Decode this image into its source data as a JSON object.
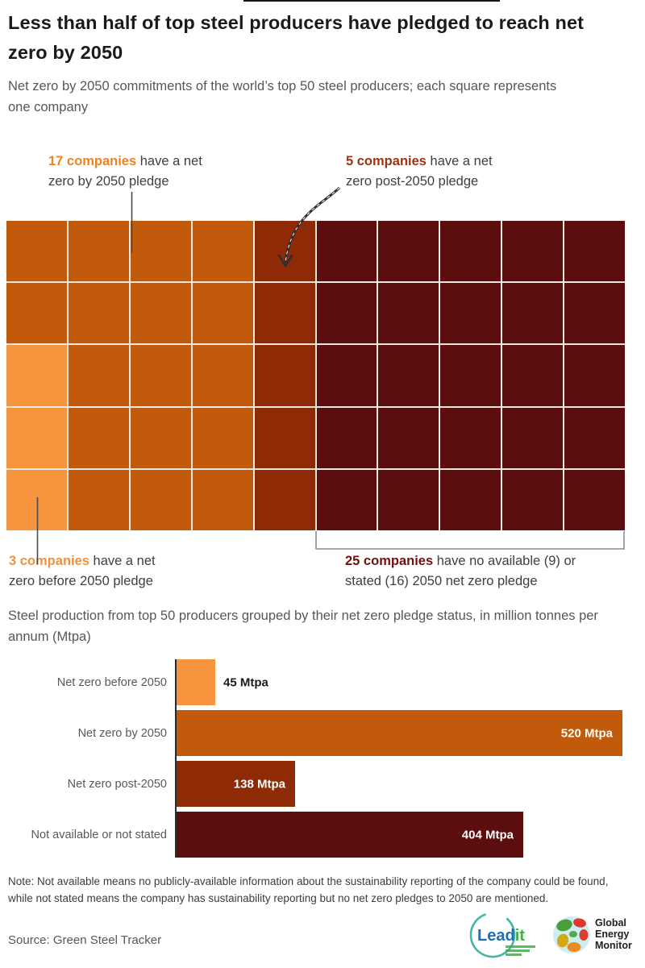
{
  "page": {
    "title": "Less than half of top steel producers have pledged to reach net zero by 2050",
    "subtitle": "Net zero by 2050 commitments of the world’s top 50 steel producers; each square represents one company"
  },
  "colors": {
    "before2050": "#F6953E",
    "by2050": "#C25A0B",
    "post2050": "#8E2B06",
    "na": "#5C0D0D"
  },
  "waffle": {
    "columns": 10,
    "rows": 5,
    "cells": [
      "by2050",
      "by2050",
      "by2050",
      "by2050",
      "post2050",
      "na",
      "na",
      "na",
      "na",
      "na",
      "by2050",
      "by2050",
      "by2050",
      "by2050",
      "post2050",
      "na",
      "na",
      "na",
      "na",
      "na",
      "before2050",
      "by2050",
      "by2050",
      "by2050",
      "post2050",
      "na",
      "na",
      "na",
      "na",
      "na",
      "before2050",
      "by2050",
      "by2050",
      "by2050",
      "post2050",
      "na",
      "na",
      "na",
      "na",
      "na",
      "before2050",
      "by2050",
      "by2050",
      "by2050",
      "post2050",
      "na",
      "na",
      "na",
      "na",
      "na"
    ],
    "annotations": {
      "by2050": {
        "bold": "17 companies",
        "rest": " have a net",
        "line2": "zero by 2050 pledge",
        "bold_color": "#ED831F"
      },
      "post2050": {
        "bold": "5 companies",
        "rest": " have a net",
        "line2": "zero post-2050 pledge",
        "bold_color": "#9E3213"
      },
      "before2050": {
        "bold": "3 companies",
        "rest": " have a net",
        "line2": "zero before 2050 pledge",
        "bold_color": "#F2913B"
      },
      "na": {
        "bold": "25 companies",
        "rest": " have no available (9) or",
        "line2": "stated (16) 2050 net zero pledge",
        "bold_color": "#701310"
      }
    }
  },
  "production": {
    "heading": "Steel production from top 50 producers grouped by their net zero pledge status, in million tonnes per annum (Mtpa)"
  },
  "chart_data": [
    {
      "type": "bar",
      "subtype": "waffle",
      "title": "Net zero by 2050 commitments of the world’s top 50 steel producers; each square represents one company",
      "categories": [
        "Net zero before 2050",
        "Net zero by 2050",
        "Net zero post-2050",
        "No available (9) or stated (16) 2050 net zero pledge"
      ],
      "values": [
        3,
        17,
        5,
        25
      ],
      "unit": "companies",
      "total": 50,
      "colors": [
        "#F6953E",
        "#C25A0B",
        "#8E2B06",
        "#5C0D0D"
      ]
    },
    {
      "type": "bar",
      "orientation": "horizontal",
      "title": "Steel production from top 50 producers grouped by their net zero pledge status, in million tonnes per annum (Mtpa)",
      "categories": [
        "Net zero before 2050",
        "Net zero by 2050",
        "Net zero post-2050",
        "Not available or not stated"
      ],
      "values": [
        45,
        520,
        138,
        404
      ],
      "value_labels": [
        "45 Mtpa",
        "520 Mtpa",
        "138 Mtpa",
        "404 Mtpa"
      ],
      "unit": "Mtpa",
      "xlim": [
        0,
        520
      ],
      "bar_colors": [
        "#F6953E",
        "#C25A0B",
        "#8E2B06",
        "#5C0D0D"
      ],
      "grid": false,
      "legend": false
    }
  ],
  "note": "Note: Not available means no publicly-available information about the sustainability reporting of the company could be found, while not stated means the company has sustainability reporting but no net zero pledges to 2050 are mentioned.",
  "source": "Source: Green Steel Tracker",
  "logos": {
    "leadit": {
      "part1": "Lead",
      "part2": "it",
      "blue": "#1F6FB2",
      "green": "#3FAE49",
      "circle": "#45B7A4"
    },
    "gem": {
      "line1": "Global",
      "line2": "Energy",
      "line3": "Monitor",
      "text_color": "#1e1e1e"
    }
  }
}
